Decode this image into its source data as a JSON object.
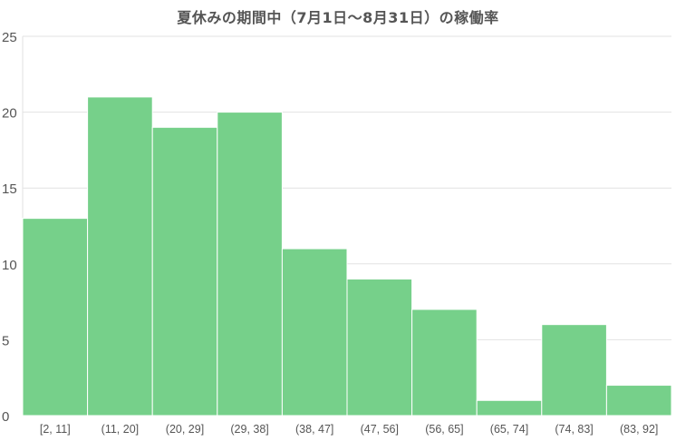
{
  "chart_data": {
    "type": "bar",
    "title": "夏休みの期間中（7月1日〜8月31日）の稼働率",
    "categories": [
      "[2, 11]",
      "(11, 20]",
      "(20, 29]",
      "(29, 38]",
      "(38, 47]",
      "(47, 56]",
      "(56, 65]",
      "(65, 74]",
      "(74, 83]",
      "(83, 92]"
    ],
    "values": [
      13,
      21,
      19,
      20,
      11,
      9,
      7,
      1,
      6,
      2
    ],
    "ylim": [
      0,
      25
    ],
    "yticks": [
      0,
      5,
      10,
      15,
      20,
      25
    ],
    "xlabel": "",
    "ylabel": "",
    "grid": true,
    "bar_color": "#76d08a",
    "bar_stroke": "#ffffff",
    "grid_color": "#e2e2e2",
    "text_color": "#555555"
  }
}
